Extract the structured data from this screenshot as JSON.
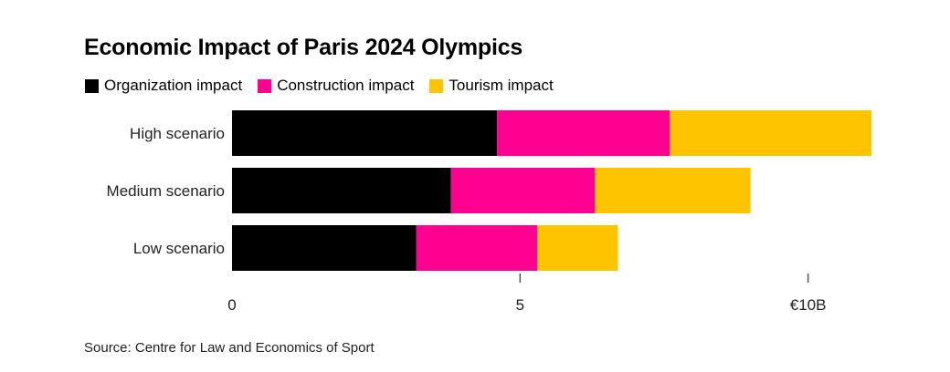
{
  "chart_data": {
    "type": "bar",
    "orientation": "horizontal",
    "stacked": true,
    "title": "Economic Impact of Paris 2024 Olympics",
    "categories": [
      "High scenario",
      "Medium scenario",
      "Low scenario"
    ],
    "series": [
      {
        "name": "Organization impact",
        "color": "#000000",
        "values": [
          4.6,
          3.8,
          3.2
        ]
      },
      {
        "name": "Construction impact",
        "color": "#ff0090",
        "values": [
          3.0,
          2.5,
          2.1
        ]
      },
      {
        "name": "Tourism impact",
        "color": "#ffc400",
        "values": [
          3.5,
          2.7,
          1.4
        ]
      }
    ],
    "xlim": [
      0,
      11.1
    ],
    "x_ticks": [
      {
        "value": 0,
        "label": "0"
      },
      {
        "value": 5,
        "label": "5"
      },
      {
        "value": 10,
        "label": "€10B"
      }
    ],
    "legend_position": "top-left",
    "grid": false,
    "source": "Source: Centre for Law and Economics of Sport"
  }
}
